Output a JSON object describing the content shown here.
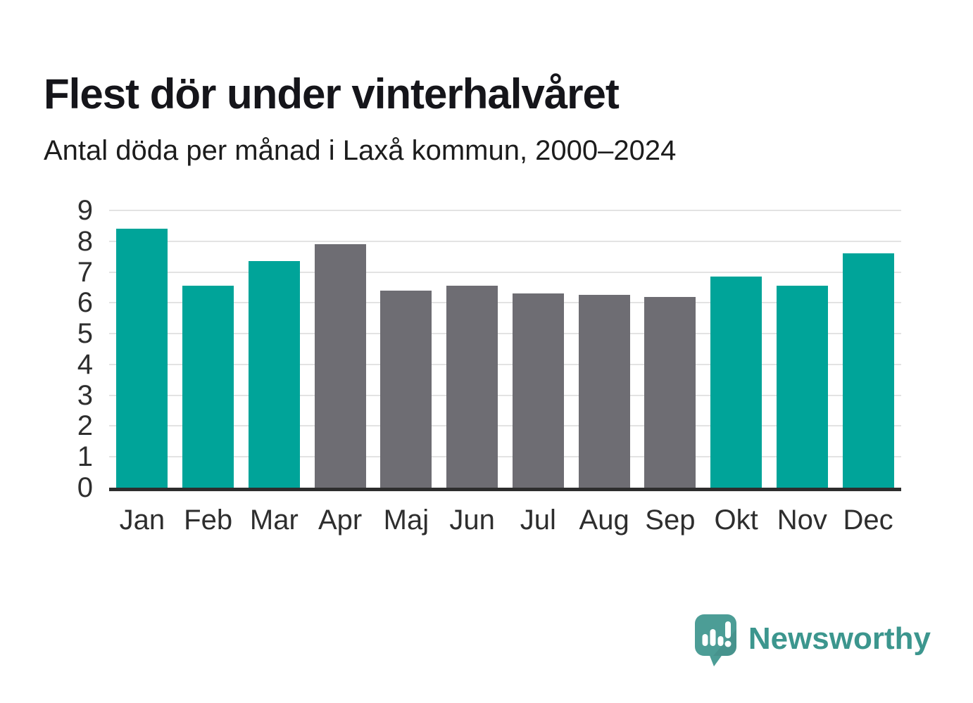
{
  "chart_data": {
    "type": "bar",
    "title": "Flest dör under vinterhalvåret",
    "subtitle": "Antal döda per månad i Laxå kommun, 2000–2024",
    "categories": [
      "Jan",
      "Feb",
      "Mar",
      "Apr",
      "Maj",
      "Jun",
      "Jul",
      "Aug",
      "Sep",
      "Okt",
      "Nov",
      "Dec"
    ],
    "values": [
      8.4,
      6.55,
      7.35,
      7.9,
      6.4,
      6.55,
      6.3,
      6.25,
      6.2,
      6.85,
      6.55,
      7.6
    ],
    "bar_colors": [
      "#00a499",
      "#00a499",
      "#00a499",
      "#6e6d73",
      "#6e6d73",
      "#6e6d73",
      "#6e6d73",
      "#6e6d73",
      "#6e6d73",
      "#00a499",
      "#00a499",
      "#00a499"
    ],
    "highlight_color": "#00a499",
    "base_color": "#6e6d73",
    "xlabel": "",
    "ylabel": "",
    "ylim": [
      0,
      9
    ],
    "yticks": [
      0,
      1,
      2,
      3,
      4,
      5,
      6,
      7,
      8,
      9
    ],
    "grid": true,
    "legend": false
  },
  "footer": {
    "brand": "Newsworthy"
  },
  "colors": {
    "teal_bar": "#00a499",
    "gray_bar": "#6e6d73",
    "logo_teal": "#4c9d96",
    "brand_text": "#3c968e",
    "gridline": "#e3e3e3",
    "axis": "#2d2d2d",
    "title_text": "#15151a"
  }
}
